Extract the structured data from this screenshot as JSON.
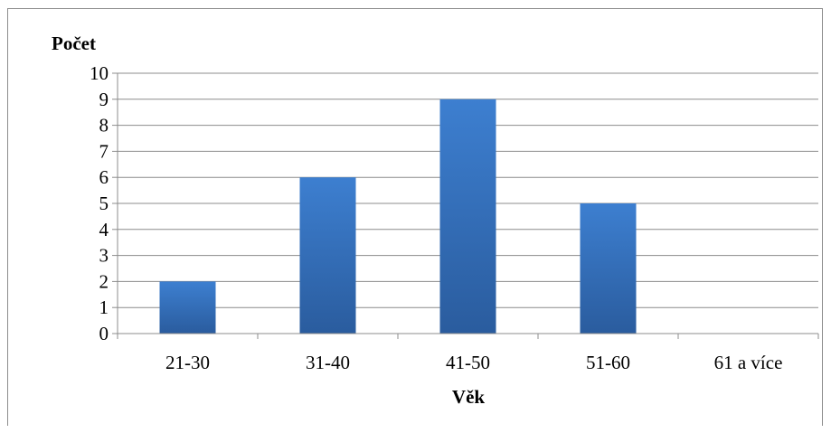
{
  "chart_data": {
    "type": "bar",
    "title": "",
    "xlabel": "Věk",
    "ylabel": "Počet",
    "categories": [
      "21-30",
      "31-40",
      "41-50",
      "51-60",
      "61 a více"
    ],
    "values": [
      2,
      6,
      9,
      5,
      0
    ],
    "ylim": [
      0,
      10
    ],
    "yticks": [
      "0",
      "1",
      "2",
      "3",
      "4",
      "5",
      "6",
      "7",
      "8",
      "9",
      "10"
    ],
    "grid": true,
    "legend": "none",
    "colors": {
      "bar_top": "#3d7fd0",
      "bar_bottom": "#2a5c9e",
      "grid": "#8c8c8c",
      "axis": "#8c8c8c"
    }
  }
}
